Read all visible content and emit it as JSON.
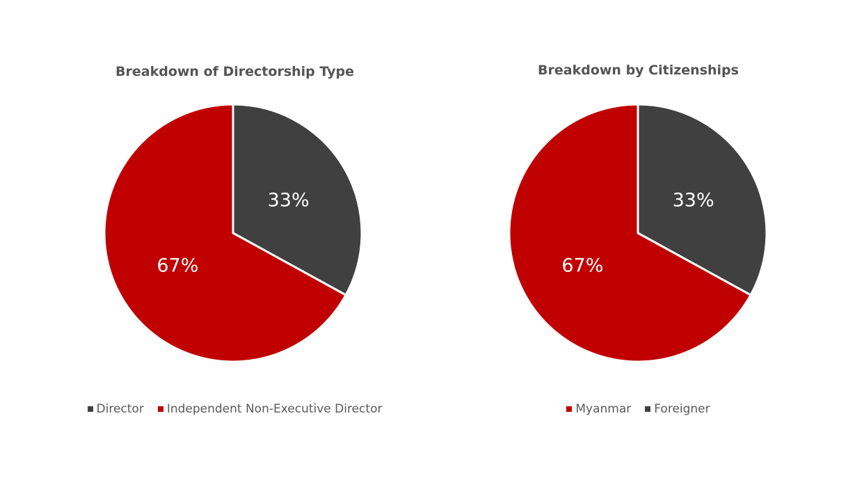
{
  "colors": {
    "dark": "#404040",
    "red": "#C00000",
    "title": "#545454",
    "legend_text": "#595959",
    "label_text": "#FFFFFF"
  },
  "chart_data": [
    {
      "type": "pie",
      "title": "Breakdown of Directorship Type",
      "slices": [
        {
          "name": "Director",
          "value": 33,
          "label": "33%",
          "color": "#404040"
        },
        {
          "name": "Independent Non-Executive Director",
          "value": 67,
          "label": "67%",
          "color": "#C00000"
        }
      ],
      "legend": {
        "placement": "bottom",
        "entries": [
          {
            "label": "Director",
            "color": "#404040"
          },
          {
            "label": "Independent Non-Executive Director",
            "color": "#C00000"
          }
        ]
      }
    },
    {
      "type": "pie",
      "title": "Breakdown by Citizenships",
      "slices": [
        {
          "name": "Foreigner",
          "value": 33,
          "label": "33%",
          "color": "#404040"
        },
        {
          "name": "Myanmar",
          "value": 67,
          "label": "67%",
          "color": "#C00000"
        }
      ],
      "legend": {
        "placement": "bottom",
        "entries": [
          {
            "label": "Myanmar",
            "color": "#C00000"
          },
          {
            "label": "Foreigner",
            "color": "#404040"
          }
        ]
      }
    }
  ]
}
